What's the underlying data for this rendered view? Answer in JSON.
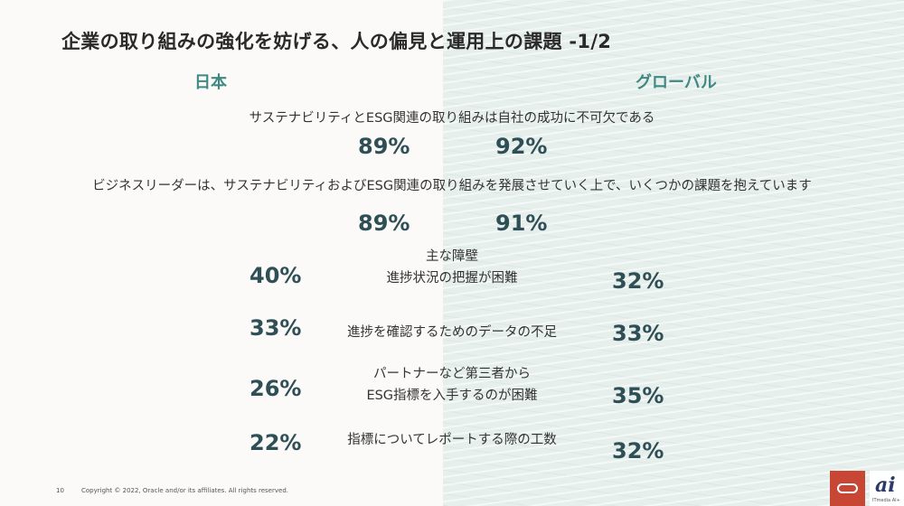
{
  "slide": {
    "title": "企業の取り組みの強化を妨げる、人の偏見と運用上の課題 -1/2",
    "header_japan": "日本",
    "header_global": "グローバル"
  },
  "statements": [
    {
      "text": "サステナビリティとESG関連の取り組みは自社の成功に不可欠である",
      "japan": "89%",
      "global": "92%"
    },
    {
      "text": "ビジネスリーダーは、サステナビリティおよびESG関連の取り組みを発展させていく上で、いくつかの課題を抱えています",
      "japan": "89%",
      "global": "91%"
    }
  ],
  "challenges_heading": "主な障壁",
  "challenges": [
    {
      "lines": [
        "進捗状況の把握が困難"
      ],
      "japan": "40%",
      "global": "32%"
    },
    {
      "lines": [
        "進捗を確認するためのデータの不足"
      ],
      "japan": "33%",
      "global": "33%"
    },
    {
      "lines": [
        "パートナーなど第三者から",
        "ESG指標を入手するのが困難"
      ],
      "japan": "26%",
      "global": "35%"
    },
    {
      "lines": [
        "指標についてレポートする際の工数"
      ],
      "japan": "22%",
      "global": "32%"
    }
  ],
  "footer": {
    "page_number": "10",
    "copyright": "Copyright © 2022, Oracle and/or its affiliates. All rights reserved."
  },
  "logos": {
    "oracle_icon": "oracle-ring-icon",
    "oracle_color": "#c74634",
    "watermark_text": "ai",
    "watermark_sub": "ITmedia AI+"
  },
  "colors": {
    "accent_teal": "#3e8a82",
    "percent_dark": "#2f4f56"
  }
}
